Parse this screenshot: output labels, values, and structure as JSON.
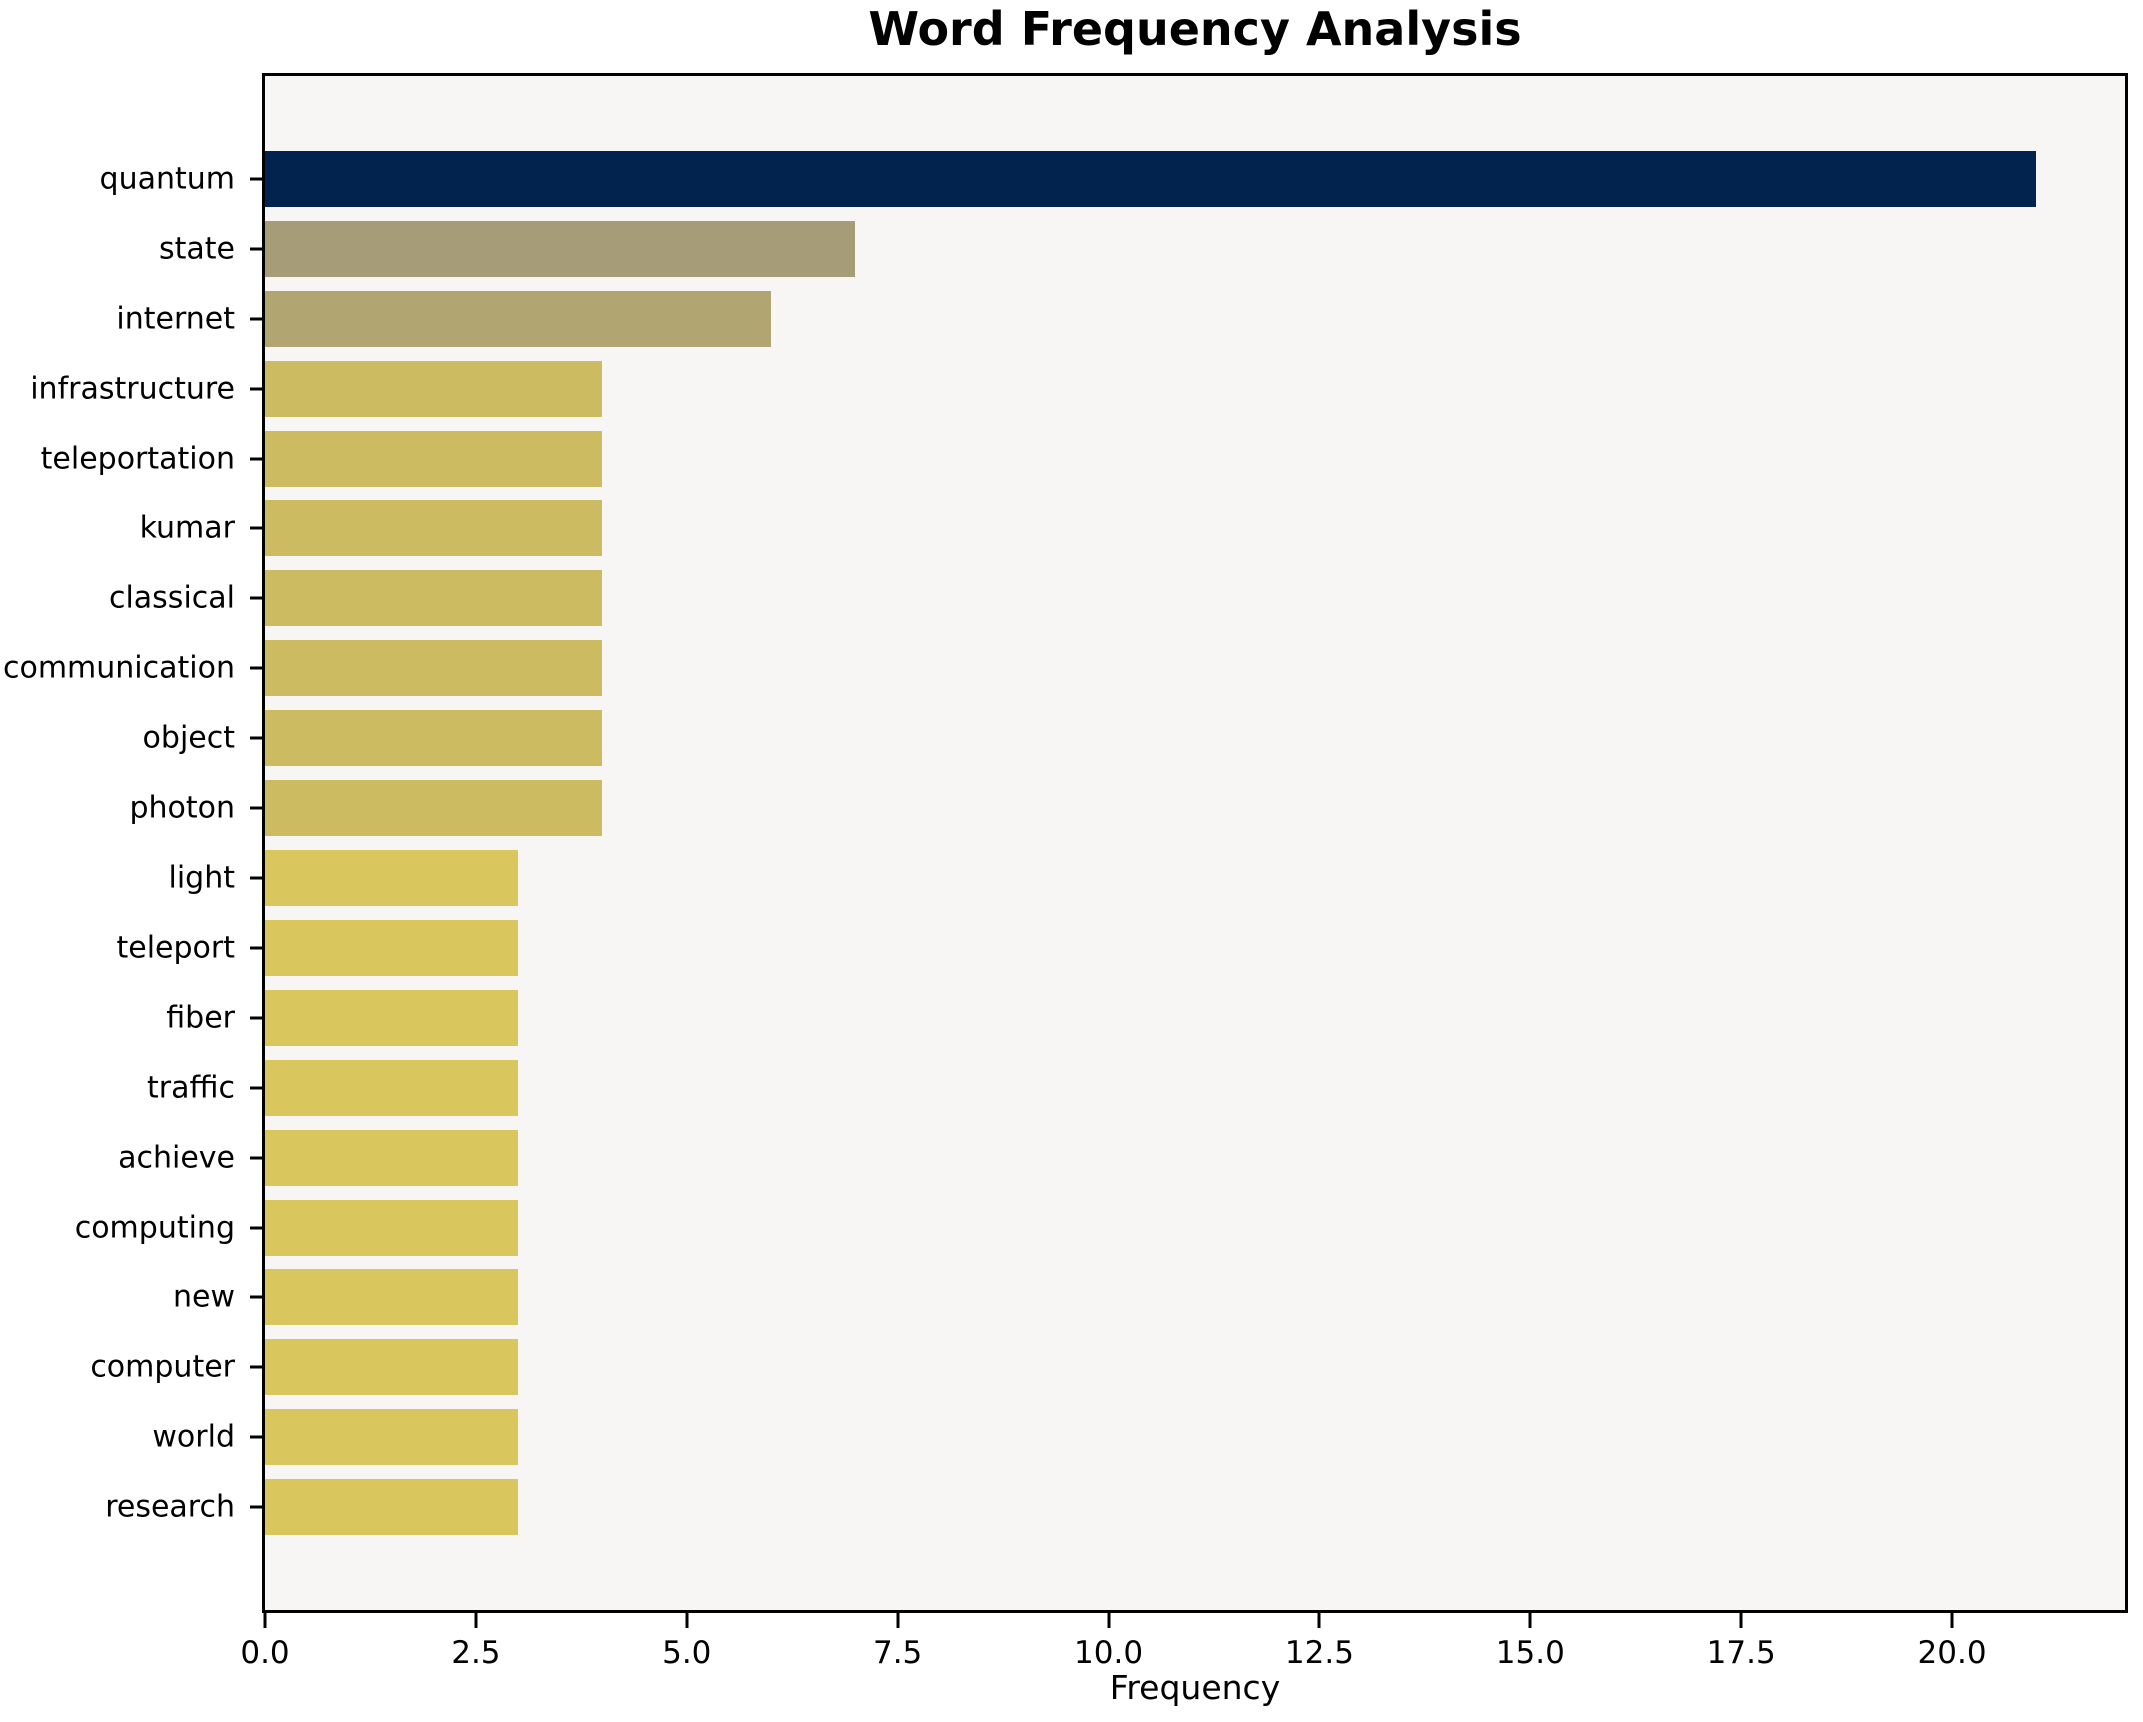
{
  "chart_data": {
    "type": "bar",
    "orientation": "horizontal",
    "title": "Word Frequency Analysis",
    "xlabel": "Frequency",
    "ylabel": "",
    "categories": [
      "quantum",
      "state",
      "internet",
      "infrastructure",
      "teleportation",
      "kumar",
      "classical",
      "communication",
      "object",
      "photon",
      "light",
      "teleport",
      "fiber",
      "traffic",
      "achieve",
      "computing",
      "new",
      "computer",
      "world",
      "research"
    ],
    "values": [
      21,
      7,
      6,
      4,
      4,
      4,
      4,
      4,
      4,
      4,
      3,
      3,
      3,
      3,
      3,
      3,
      3,
      3,
      3,
      3
    ],
    "bar_colors": [
      "#02234e",
      "#a69c78",
      "#b1a671",
      "#cdbb61",
      "#cdbb61",
      "#cdbb61",
      "#cdbb61",
      "#cdbb61",
      "#cdbb61",
      "#cdbb61",
      "#d9c75e",
      "#d9c75e",
      "#d9c75e",
      "#d9c75e",
      "#d9c75e",
      "#d9c75e",
      "#d9c75e",
      "#d9c75e",
      "#d9c75e",
      "#d9c75e"
    ],
    "xlim": [
      0,
      22.05
    ],
    "x_ticks": [
      0,
      2.5,
      5,
      7.5,
      10,
      12.5,
      15,
      17.5,
      20
    ],
    "x_tick_labels": [
      "0.0",
      "2.5",
      "5.0",
      "7.5",
      "10.0",
      "12.5",
      "15.0",
      "17.5",
      "20.0"
    ],
    "grid": false,
    "legend": null,
    "plot_background": "#f7f6f5",
    "figure_background": "#ffffff",
    "spine_color": "#000000"
  }
}
